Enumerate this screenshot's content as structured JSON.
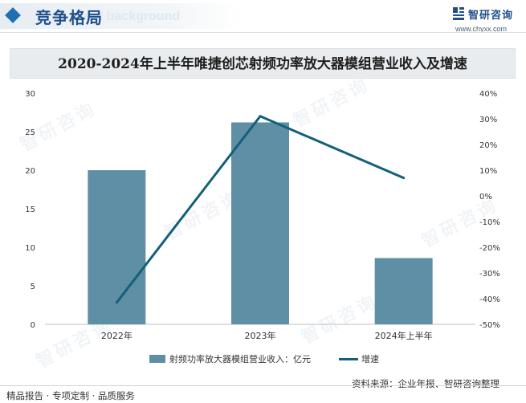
{
  "header": {
    "section_title": "竞争格局",
    "ghost_text": "ment background",
    "logo_name": "智研咨询",
    "logo_url": "www.chyxx.com",
    "logo_icon": "chyxx-logo-icon"
  },
  "title": "2020-2024年上半年唯捷创芯射频功率放大器模组营业收入及增速",
  "watermark": "智研咨询",
  "chart_data": {
    "type": "bar",
    "categories": [
      "2022年",
      "2023年",
      "2024年上半年"
    ],
    "series": [
      {
        "name": "射频功率放大器模组营业收入：亿元",
        "type": "bar",
        "axis": "left",
        "color": "#5f8fa5",
        "values": [
          20,
          26.2,
          8.6
        ]
      },
      {
        "name": "增速",
        "type": "line",
        "axis": "right",
        "color": "#12607a",
        "values": [
          -41.5,
          31,
          7
        ]
      }
    ],
    "y_left": {
      "min": 0,
      "max": 30,
      "ticks": [
        0,
        5,
        10,
        15,
        20,
        25,
        30
      ]
    },
    "y_right": {
      "min": -50,
      "max": 40,
      "ticks": [
        -50,
        -40,
        -30,
        -20,
        -10,
        0,
        10,
        20,
        30,
        40
      ],
      "unit": "%"
    },
    "grid": false
  },
  "legend": {
    "bar_label": "射频功率放大器模组营业收入：亿元",
    "line_label": "增速"
  },
  "source": "资料来源：企业年报、智研咨询整理",
  "footer": "精品报告 · 专项定制 · 品质服务"
}
